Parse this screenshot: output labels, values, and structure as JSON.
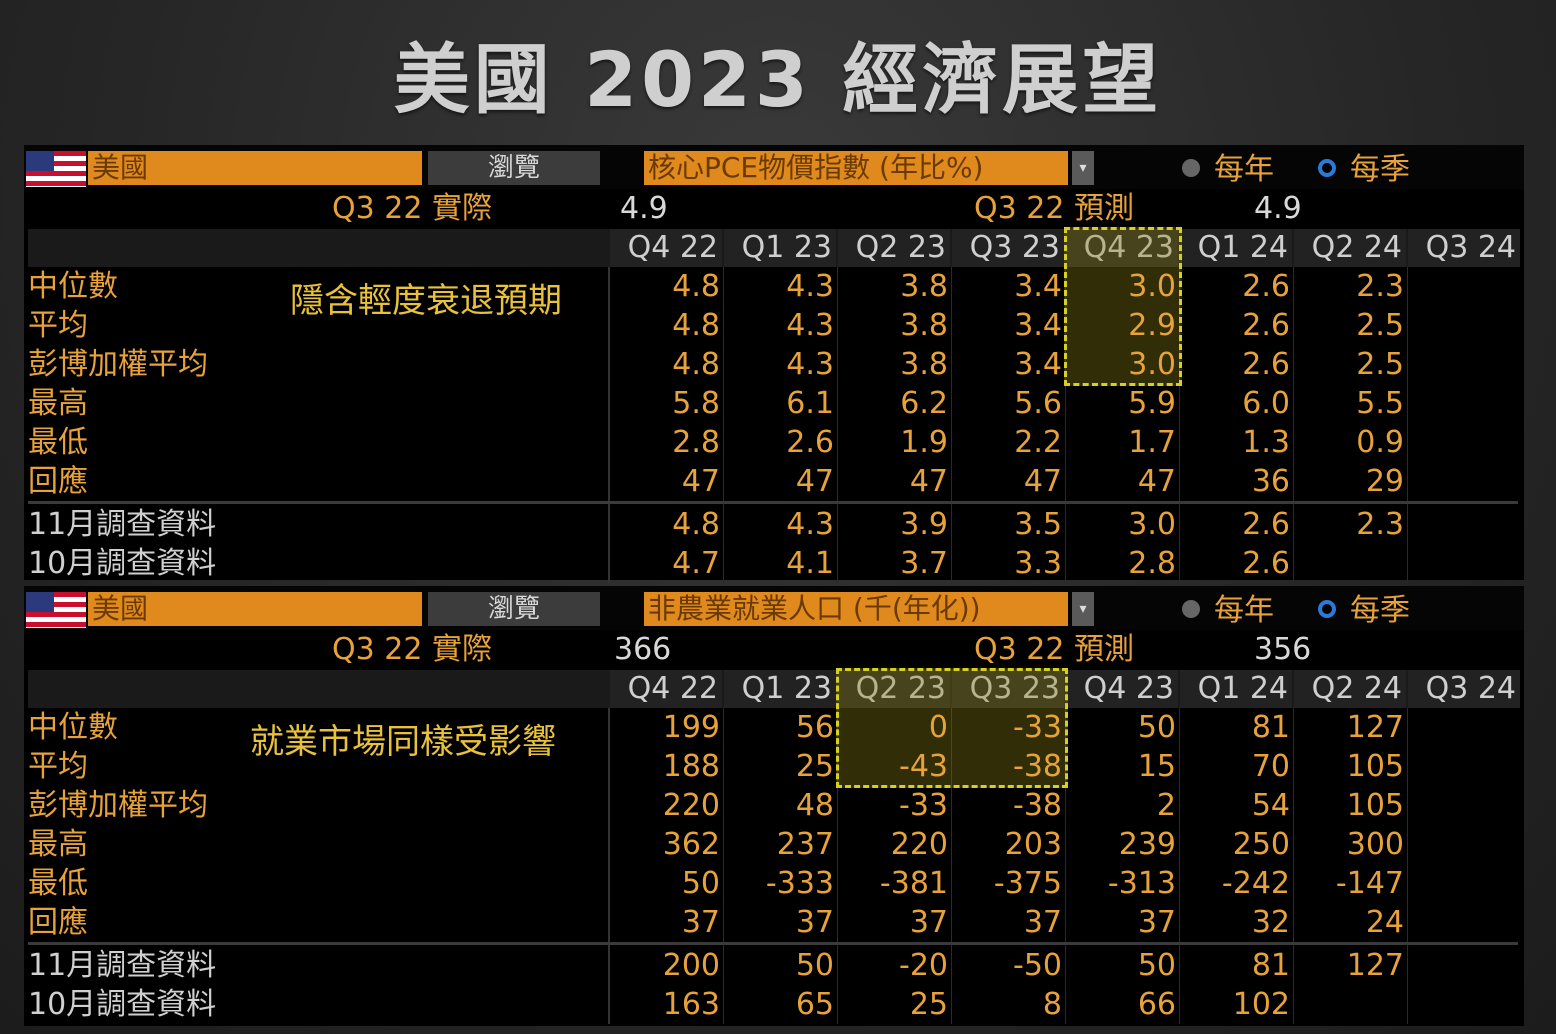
{
  "title": "美國 2023 經濟展望",
  "columns": [
    "Q4 22",
    "Q1 23",
    "Q2 23",
    "Q3 23",
    "Q4 23",
    "Q1 24",
    "Q2 24",
    "Q3 24"
  ],
  "panels": [
    {
      "country": "美國",
      "browse": "瀏覽",
      "indicator": "核心PCE物價指數 (年比%)",
      "radio_year": "每年",
      "radio_quarter": "每季",
      "actual_label": "Q3 22 實際",
      "actual_value": "4.9",
      "forecast_label": "Q3 22 預測",
      "forecast_value": "4.9",
      "note": "隱含輕度衰退預期",
      "rows": [
        {
          "label": "中位數",
          "values": [
            "4.8",
            "4.3",
            "3.8",
            "3.4",
            "3.0",
            "2.6",
            "2.3",
            ""
          ]
        },
        {
          "label": "平均",
          "values": [
            "4.8",
            "4.3",
            "3.8",
            "3.4",
            "2.9",
            "2.6",
            "2.5",
            ""
          ]
        },
        {
          "label": "彭博加權平均",
          "values": [
            "4.8",
            "4.3",
            "3.8",
            "3.4",
            "3.0",
            "2.6",
            "2.5",
            ""
          ]
        },
        {
          "label": "最高",
          "values": [
            "5.8",
            "6.1",
            "6.2",
            "5.6",
            "5.9",
            "6.0",
            "5.5",
            ""
          ]
        },
        {
          "label": "最低",
          "values": [
            "2.8",
            "2.6",
            "1.9",
            "2.2",
            "1.7",
            "1.3",
            "0.9",
            ""
          ]
        },
        {
          "label": "回應",
          "values": [
            "47",
            "47",
            "47",
            "47",
            "47",
            "36",
            "29",
            ""
          ]
        }
      ],
      "survey_rows": [
        {
          "label": "11月調查資料",
          "values": [
            "4.8",
            "4.3",
            "3.9",
            "3.5",
            "3.0",
            "2.6",
            "2.3",
            ""
          ]
        },
        {
          "label": "10月調查資料",
          "values": [
            "4.7",
            "4.1",
            "3.7",
            "3.3",
            "2.8",
            "2.6",
            "",
            ""
          ]
        }
      ]
    },
    {
      "country": "美國",
      "browse": "瀏覽",
      "indicator": "非農業就業人口 (千(年化))",
      "radio_year": "每年",
      "radio_quarter": "每季",
      "actual_label": "Q3 22 實際",
      "actual_value": "366",
      "forecast_label": "Q3 22 預測",
      "forecast_value": "356",
      "note": "就業市場同樣受影響",
      "rows": [
        {
          "label": "中位數",
          "values": [
            "199",
            "56",
            "0",
            "-33",
            "50",
            "81",
            "127",
            ""
          ]
        },
        {
          "label": "平均",
          "values": [
            "188",
            "25",
            "-43",
            "-38",
            "15",
            "70",
            "105",
            ""
          ]
        },
        {
          "label": "彭博加權平均",
          "values": [
            "220",
            "48",
            "-33",
            "-38",
            "2",
            "54",
            "105",
            ""
          ]
        },
        {
          "label": "最高",
          "values": [
            "362",
            "237",
            "220",
            "203",
            "239",
            "250",
            "300",
            ""
          ]
        },
        {
          "label": "最低",
          "values": [
            "50",
            "-333",
            "-381",
            "-375",
            "-313",
            "-242",
            "-147",
            ""
          ]
        },
        {
          "label": "回應",
          "values": [
            "37",
            "37",
            "37",
            "37",
            "37",
            "32",
            "24",
            ""
          ]
        }
      ],
      "survey_rows": [
        {
          "label": "11月調查資料",
          "values": [
            "200",
            "50",
            "-20",
            "-50",
            "50",
            "81",
            "127",
            ""
          ]
        },
        {
          "label": "10月調查資料",
          "values": [
            "163",
            "65",
            "25",
            "8",
            "66",
            "102",
            "",
            ""
          ]
        }
      ]
    }
  ]
}
